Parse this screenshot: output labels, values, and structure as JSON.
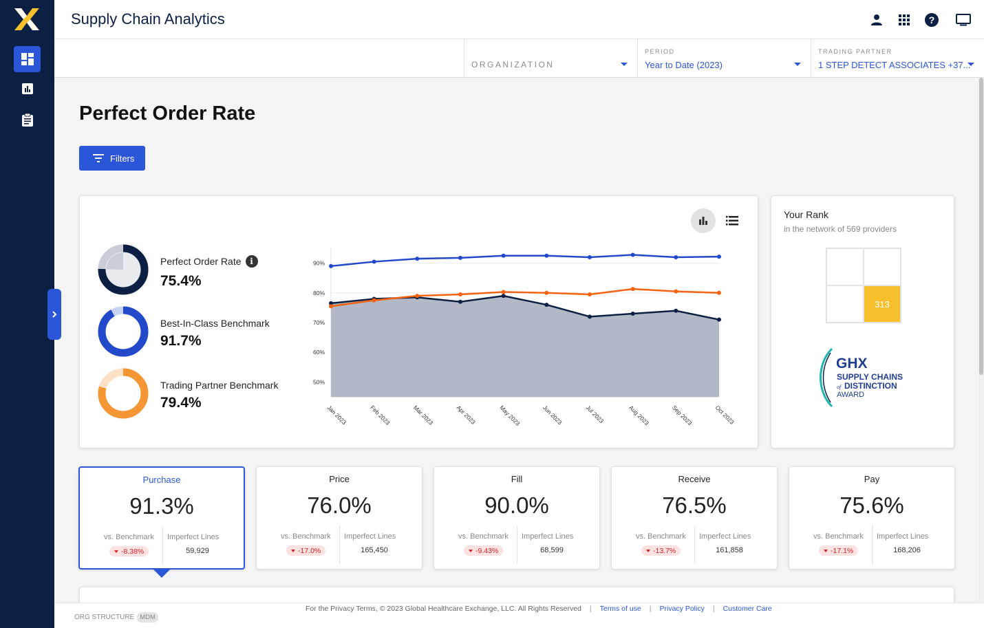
{
  "header": {
    "app_title": "Supply Chain Analytics"
  },
  "nav": {
    "items": [
      "dashboard-icon",
      "report-icon",
      "clipboard-icon"
    ]
  },
  "top_icons": [
    "person-icon",
    "apps-grid-icon",
    "help-icon",
    "monitor-icon"
  ],
  "selectors": {
    "organization": {
      "placeholder": "ORGANIZATION"
    },
    "period": {
      "label": "PERIOD",
      "value": "Year to Date (2023)"
    },
    "trading_partner": {
      "label": "TRADING PARTNER",
      "value": "1 STEP DETECT ASSOCIATES +37..."
    }
  },
  "page": {
    "title": "Perfect Order Rate",
    "filters_label": "Filters"
  },
  "summary": {
    "metrics": [
      {
        "label": "Perfect Order Rate",
        "value": "75.4%",
        "fraction": 0.754,
        "color": "#0c2044",
        "track": "#c9cdd6"
      },
      {
        "label": "Best-In-Class Benchmark",
        "value": "91.7%",
        "fraction": 0.917,
        "color": "#2149c9",
        "track": "#c8d3f4"
      },
      {
        "label": "Trading Partner Benchmark",
        "value": "79.4%",
        "fraction": 0.794,
        "color": "#f39633",
        "track": "#fbe1c6"
      }
    ]
  },
  "chart_data": {
    "type": "line",
    "categories": [
      "Jan 2023",
      "Feb 2023",
      "Mar 2023",
      "Apr 2023",
      "May 2023",
      "Jun 2023",
      "Jul 2023",
      "Aug 2023",
      "Sep 2023",
      "Oct 2023"
    ],
    "y_ticks": [
      "90%",
      "80%",
      "70%",
      "60%",
      "50%"
    ],
    "y_tick_values": [
      90,
      80,
      70,
      60,
      50
    ],
    "ylim": [
      45,
      95
    ],
    "grid": true,
    "series": [
      {
        "values": [
          89.0,
          90.5,
          91.5,
          91.8,
          92.5,
          92.5,
          92.0,
          92.8,
          92.0,
          92.2
        ],
        "color": "#2149c9",
        "area": false
      },
      {
        "values": [
          75.5,
          77.5,
          79.0,
          79.5,
          80.3,
          80.0,
          79.5,
          81.3,
          80.5,
          80.0
        ],
        "color": "#f4620f",
        "area": false
      },
      {
        "values": [
          76.5,
          78.0,
          78.5,
          77.0,
          79.0,
          76.0,
          72.0,
          73.0,
          74.0,
          71.0
        ],
        "color": "#0c2044",
        "area": true,
        "area_color": "#b2b8c5"
      }
    ]
  },
  "rank": {
    "title": "Your Rank",
    "subtitle": "in the network of 569 providers",
    "value": "313"
  },
  "award": {
    "brand": "GHX",
    "line1": "SUPPLY CHAINS",
    "line2_prefix": "of",
    "line2": "DISTINCTION",
    "line3": "AWARD"
  },
  "kpis": [
    {
      "name": "Purchase",
      "value": "91.3%",
      "bench_label": "vs. Benchmark",
      "bench": "-8.38%",
      "lines_label": "Imperfect Lines",
      "lines": "59,929",
      "selected": true
    },
    {
      "name": "Price",
      "value": "76.0%",
      "bench_label": "vs. Benchmark",
      "bench": "-17.0%",
      "lines_label": "Imperfect Lines",
      "lines": "165,450"
    },
    {
      "name": "Fill",
      "value": "90.0%",
      "bench_label": "vs. Benchmark",
      "bench": "-9.43%",
      "lines_label": "Imperfect Lines",
      "lines": "68,599"
    },
    {
      "name": "Receive",
      "value": "76.5%",
      "bench_label": "vs. Benchmark",
      "bench": "-13.7%",
      "lines_label": "Imperfect Lines",
      "lines": "161,858"
    },
    {
      "name": "Pay",
      "value": "75.6%",
      "bench_label": "vs. Benchmark",
      "bench": "-17.1%",
      "lines_label": "Imperfect Lines",
      "lines": "168,206"
    }
  ],
  "footer": {
    "org_structure": "ORG STRUCTURE",
    "mdm": "MDM",
    "copyright": "For the Privacy Terms, © 2023 Global Healthcare Exchange, LLC. All Rights Reserved",
    "links": [
      "Terms of use",
      "Privacy Policy",
      "Customer Care"
    ]
  }
}
